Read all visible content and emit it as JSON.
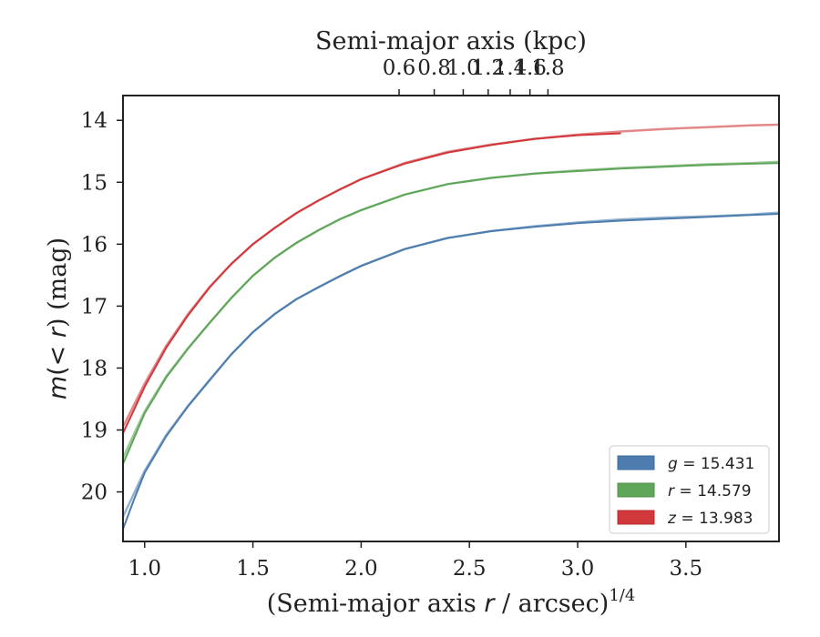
{
  "chart_data": {
    "type": "line",
    "title": "",
    "xlabel": "(Semi-major axis r / arcsec)",
    "xlabel_parts": {
      "pre": "(Semi-major axis ",
      "var": "r",
      "post": " / arcsec)",
      "exp": "1/4"
    },
    "ylabel": "m(< r) (mag)",
    "ylabel_parts": {
      "var": "m",
      "mid": "(< ",
      "var2": "r",
      "post": ") (mag)"
    },
    "top_xlabel": "Semi-major axis (kpc)",
    "xlim": [
      0.9,
      3.93
    ],
    "ylim": [
      20.8,
      13.6
    ],
    "y_inverted": true,
    "kpc_per_xpow4_arcsec": 0.0268,
    "x_ticks": [
      "1.0",
      "1.5",
      "2.0",
      "2.5",
      "3.0",
      "3.5"
    ],
    "y_ticks": [
      "14",
      "15",
      "16",
      "17",
      "18",
      "19",
      "20"
    ],
    "top_ticks": [
      "0.6",
      "0.8",
      "1.0",
      "1.2",
      "1.4",
      "1.6",
      "1.8"
    ],
    "grid": false,
    "legend_position": "lower-right",
    "series": [
      {
        "name": "g = 15.431",
        "band": "g",
        "value": "15.431",
        "color": "#4c7dae",
        "x": [
          0.9,
          0.95,
          1.0,
          1.1,
          1.2,
          1.3,
          1.4,
          1.5,
          1.6,
          1.7,
          1.8,
          1.9,
          2.0,
          2.2,
          2.4,
          2.6,
          2.8,
          3.0,
          3.2,
          3.4,
          3.6,
          3.8,
          3.93
        ],
        "y": [
          20.6,
          20.13,
          19.69,
          19.1,
          18.62,
          18.2,
          17.78,
          17.42,
          17.13,
          16.89,
          16.7,
          16.52,
          16.35,
          16.08,
          15.9,
          15.79,
          15.72,
          15.66,
          15.62,
          15.59,
          15.56,
          15.53,
          15.51
        ],
        "model_x": [
          0.9,
          0.95,
          1.0,
          1.1,
          1.2,
          1.3,
          1.4,
          1.5,
          1.6,
          1.7,
          1.8,
          1.9,
          2.0,
          2.2,
          2.4,
          2.6,
          2.8,
          3.0,
          3.2,
          3.4,
          3.6,
          3.8,
          3.93
        ],
        "model_y": [
          20.4,
          20.03,
          19.66,
          19.08,
          18.61,
          18.19,
          17.78,
          17.42,
          17.13,
          16.89,
          16.7,
          16.52,
          16.35,
          16.08,
          15.9,
          15.79,
          15.71,
          15.65,
          15.6,
          15.57,
          15.55,
          15.52,
          15.49
        ]
      },
      {
        "name": "r = 14.579",
        "band": "r",
        "value": "14.579",
        "color": "#5fa55a",
        "x": [
          0.9,
          0.95,
          1.0,
          1.1,
          1.2,
          1.3,
          1.4,
          1.5,
          1.6,
          1.7,
          1.8,
          1.9,
          2.0,
          2.2,
          2.4,
          2.6,
          2.8,
          3.0,
          3.2,
          3.4,
          3.6,
          3.8,
          3.93
        ],
        "y": [
          19.55,
          19.14,
          18.73,
          18.15,
          17.69,
          17.27,
          16.87,
          16.51,
          16.22,
          15.98,
          15.78,
          15.6,
          15.45,
          15.2,
          15.03,
          14.93,
          14.86,
          14.82,
          14.78,
          14.75,
          14.72,
          14.7,
          14.69
        ],
        "model_x": [
          0.9,
          0.95,
          1.0,
          1.1,
          1.2,
          1.3,
          1.4,
          1.5,
          1.6,
          1.7,
          1.8,
          1.9,
          2.0,
          2.2,
          2.4,
          2.6,
          2.8,
          3.0,
          3.2,
          3.4,
          3.6,
          3.8,
          3.93
        ],
        "model_y": [
          19.45,
          19.07,
          18.7,
          18.13,
          17.68,
          17.27,
          16.87,
          16.51,
          16.22,
          15.98,
          15.78,
          15.6,
          15.45,
          15.2,
          15.03,
          14.93,
          14.86,
          14.81,
          14.77,
          14.74,
          14.71,
          14.69,
          14.67
        ]
      },
      {
        "name": "z = 13.983",
        "band": "z",
        "value": "13.983",
        "color": "#d1383b",
        "x": [
          0.9,
          0.95,
          1.0,
          1.1,
          1.2,
          1.3,
          1.4,
          1.5,
          1.6,
          1.7,
          1.8,
          1.9,
          2.0,
          2.2,
          2.4,
          2.6,
          2.8,
          3.0,
          3.2
        ],
        "y": [
          19.05,
          18.68,
          18.3,
          17.67,
          17.15,
          16.7,
          16.32,
          16.0,
          15.74,
          15.5,
          15.3,
          15.12,
          14.95,
          14.7,
          14.52,
          14.4,
          14.3,
          14.24,
          14.21
        ],
        "model_x": [
          0.9,
          0.95,
          1.0,
          1.1,
          1.2,
          1.3,
          1.4,
          1.5,
          1.6,
          1.7,
          1.8,
          1.9,
          2.0,
          2.2,
          2.4,
          2.6,
          2.8,
          3.0,
          3.2,
          3.4,
          3.6,
          3.8,
          3.93
        ],
        "model_y": [
          18.95,
          18.6,
          18.25,
          17.64,
          17.13,
          16.69,
          16.32,
          16.0,
          15.74,
          15.5,
          15.3,
          15.12,
          14.95,
          14.69,
          14.51,
          14.39,
          14.3,
          14.23,
          14.18,
          14.14,
          14.11,
          14.08,
          14.07
        ]
      }
    ]
  }
}
